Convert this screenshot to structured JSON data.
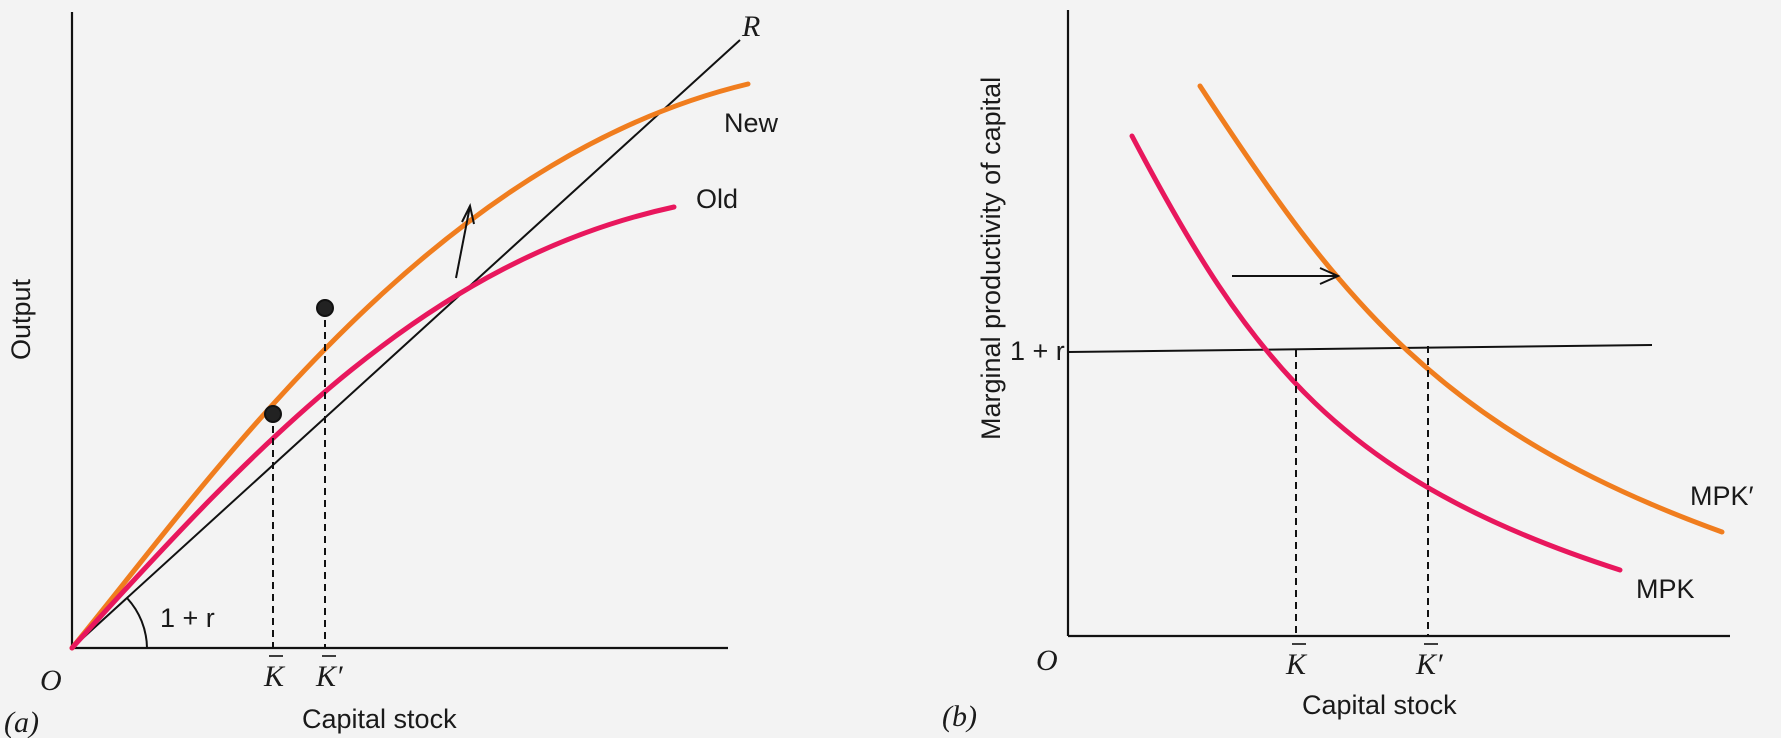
{
  "panel_a": {
    "tag": "(a)",
    "origin": "O",
    "y_axis_label": "Output",
    "x_axis_label": "Capital stock",
    "ray_label": "R",
    "angle_label": "1 + r",
    "curve_new_label": "New",
    "curve_old_label": "Old",
    "k_label": "K",
    "k_prime_label": "K′"
  },
  "panel_b": {
    "tag": "(b)",
    "origin": "O",
    "y_axis_label": "Marginal productivity of capital",
    "x_axis_label": "Capital stock",
    "hline_label": "1 + r",
    "curve_new_label": "MPK′",
    "curve_old_label": "MPK",
    "k_label": "K",
    "k_prime_label": "K′"
  },
  "colors": {
    "new_curve": "#f07d1e",
    "old_curve": "#e8175d",
    "lines": "#111111"
  }
}
